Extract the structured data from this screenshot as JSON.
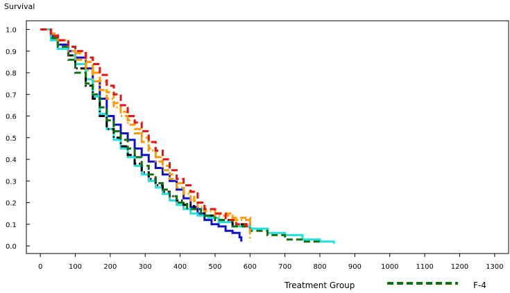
{
  "chart_data": {
    "type": "line",
    "title": "",
    "ylabel": "Survival",
    "xlabel": "",
    "xlim": [
      -40,
      1340
    ],
    "ylim": [
      -0.035,
      1.04
    ],
    "x_ticks": [
      0,
      100,
      200,
      300,
      400,
      500,
      600,
      700,
      800,
      900,
      1000,
      1100,
      1200,
      1300
    ],
    "y_ticks": [
      0.0,
      0.1,
      0.2,
      0.3,
      0.4,
      0.5,
      0.6,
      0.7,
      0.8,
      0.9,
      1.0
    ],
    "y_tick_labels": [
      "0.0",
      "0.1",
      "0.2",
      "0.3",
      "0.4",
      "0.5",
      "0.6",
      "0.7",
      "0.8",
      "0.9",
      "1.0"
    ],
    "legend": {
      "title": "Treatment Group",
      "position": "bottom",
      "entries": [
        {
          "label": "F-4",
          "color": "#107010",
          "dash": "dashed"
        }
      ]
    },
    "series": [
      {
        "color": "#1010d0",
        "dash": "solid",
        "x": [
          0,
          30,
          50,
          80,
          100,
          130,
          150,
          170,
          190,
          210,
          230,
          250,
          270,
          290,
          310,
          330,
          350,
          370,
          390,
          410,
          430,
          450,
          470,
          490,
          510,
          530,
          550,
          570,
          575
        ],
        "y": [
          1.0,
          0.97,
          0.93,
          0.9,
          0.87,
          0.82,
          0.76,
          0.68,
          0.6,
          0.56,
          0.52,
          0.49,
          0.45,
          0.42,
          0.39,
          0.36,
          0.33,
          0.3,
          0.26,
          0.22,
          0.18,
          0.15,
          0.12,
          0.1,
          0.09,
          0.07,
          0.06,
          0.04,
          0.02
        ]
      },
      {
        "color": "#20e0e0",
        "dash": "solid",
        "x": [
          0,
          30,
          50,
          80,
          100,
          130,
          150,
          170,
          190,
          210,
          230,
          250,
          270,
          290,
          310,
          330,
          350,
          370,
          390,
          410,
          430,
          450,
          480,
          510,
          550,
          600,
          650,
          700,
          750,
          800,
          840
        ],
        "y": [
          1.0,
          0.95,
          0.91,
          0.88,
          0.84,
          0.77,
          0.69,
          0.61,
          0.54,
          0.49,
          0.45,
          0.41,
          0.37,
          0.33,
          0.3,
          0.27,
          0.24,
          0.21,
          0.19,
          0.17,
          0.15,
          0.14,
          0.13,
          0.11,
          0.09,
          0.08,
          0.06,
          0.05,
          0.03,
          0.02,
          0.01
        ]
      },
      {
        "color": "#000000",
        "dash": "dashdot",
        "x": [
          0,
          30,
          50,
          80,
          100,
          130,
          150,
          170,
          190,
          210,
          230,
          250,
          270,
          290,
          310,
          330,
          350,
          370,
          390,
          410,
          440,
          470,
          500,
          550,
          600
        ],
        "y": [
          1.0,
          0.98,
          0.95,
          0.88,
          0.82,
          0.74,
          0.68,
          0.6,
          0.54,
          0.5,
          0.46,
          0.42,
          0.38,
          0.34,
          0.31,
          0.28,
          0.25,
          0.23,
          0.21,
          0.19,
          0.17,
          0.14,
          0.12,
          0.1,
          0.08
        ]
      },
      {
        "color": "#107010",
        "dash": "dashed",
        "x": [
          0,
          30,
          50,
          80,
          100,
          130,
          150,
          170,
          190,
          210,
          230,
          250,
          270,
          290,
          310,
          330,
          350,
          370,
          390,
          420,
          460,
          500,
          550,
          600,
          650,
          700,
          750,
          800
        ],
        "y": [
          1.0,
          0.96,
          0.92,
          0.86,
          0.8,
          0.75,
          0.7,
          0.64,
          0.58,
          0.53,
          0.49,
          0.45,
          0.41,
          0.37,
          0.33,
          0.29,
          0.26,
          0.23,
          0.2,
          0.17,
          0.14,
          0.12,
          0.09,
          0.07,
          0.05,
          0.03,
          0.02,
          0.02
        ]
      },
      {
        "color": "#ff9900",
        "dash": "dashdot",
        "x": [
          0,
          30,
          50,
          80,
          100,
          130,
          150,
          170,
          190,
          210,
          230,
          250,
          270,
          290,
          310,
          330,
          350,
          370,
          390,
          410,
          430,
          450,
          470,
          500,
          550,
          600
        ],
        "y": [
          1.0,
          0.98,
          0.95,
          0.9,
          0.86,
          0.81,
          0.76,
          0.72,
          0.68,
          0.64,
          0.6,
          0.56,
          0.52,
          0.48,
          0.44,
          0.39,
          0.35,
          0.31,
          0.27,
          0.24,
          0.21,
          0.18,
          0.16,
          0.14,
          0.12,
          0.02
        ]
      },
      {
        "color": "#ff9900",
        "dash": "dashed",
        "x": [
          0,
          30,
          50,
          80,
          100,
          130,
          150,
          170,
          190,
          210,
          230,
          250,
          270,
          290,
          310,
          330,
          350,
          370,
          390,
          410,
          440,
          470,
          500,
          550,
          600
        ],
        "y": [
          1.0,
          0.97,
          0.95,
          0.92,
          0.89,
          0.85,
          0.8,
          0.76,
          0.71,
          0.66,
          0.62,
          0.58,
          0.54,
          0.5,
          0.45,
          0.41,
          0.37,
          0.33,
          0.29,
          0.25,
          0.2,
          0.17,
          0.15,
          0.13,
          0.1
        ]
      },
      {
        "color": "#ee1010",
        "dash": "dashed",
        "x": [
          0,
          30,
          50,
          80,
          100,
          130,
          150,
          170,
          190,
          210,
          230,
          250,
          270,
          290,
          310,
          330,
          350,
          370,
          390,
          410,
          430,
          450,
          470,
          500,
          530,
          560,
          590
        ],
        "y": [
          1.0,
          0.97,
          0.95,
          0.92,
          0.9,
          0.87,
          0.84,
          0.79,
          0.74,
          0.7,
          0.65,
          0.6,
          0.57,
          0.53,
          0.48,
          0.44,
          0.4,
          0.35,
          0.31,
          0.28,
          0.25,
          0.2,
          0.17,
          0.15,
          0.12,
          0.1,
          0.07
        ]
      }
    ]
  }
}
